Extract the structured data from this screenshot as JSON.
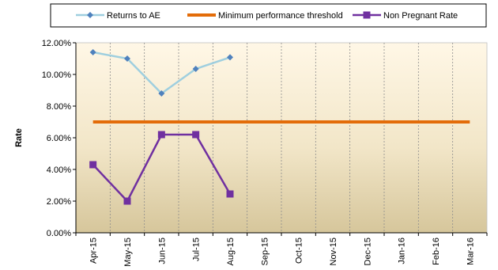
{
  "chart_data": {
    "type": "line",
    "title": "",
    "xlabel": "",
    "ylabel": "Rate",
    "ylim": [
      0,
      0.12
    ],
    "y_ticks": [
      "0.00%",
      "2.00%",
      "4.00%",
      "6.00%",
      "8.00%",
      "10.00%",
      "12.00%"
    ],
    "grid": "vertical dashed gridlines",
    "legend_placement": "top",
    "categories": [
      "Apr-15",
      "May-15",
      "Jun-15",
      "Jul-15",
      "Aug-15",
      "Sep-15",
      "Oct-15",
      "Nov-15",
      "Dec-15",
      "Jan-16",
      "Feb-16",
      "Mar-16"
    ],
    "series": [
      {
        "name": "Returns to AE",
        "color": "#9fcfdf",
        "marker": "diamond",
        "marker_color": "#4f81bd",
        "values": [
          0.114,
          0.11,
          0.088,
          0.1035,
          0.1108,
          null,
          null,
          null,
          null,
          null,
          null,
          null
        ]
      },
      {
        "name": "Minimum performance threshold",
        "color": "#e36c09",
        "marker": "none",
        "values": [
          0.07,
          0.07,
          0.07,
          0.07,
          0.07,
          0.07,
          0.07,
          0.07,
          0.07,
          0.07,
          0.07,
          0.07
        ]
      },
      {
        "name": "Non Pregnant Rate",
        "color": "#7030a0",
        "marker": "square",
        "marker_color": "#7030a0",
        "values": [
          0.043,
          0.02,
          0.062,
          0.062,
          0.0245,
          null,
          null,
          null,
          null,
          null,
          null,
          null
        ]
      }
    ]
  }
}
